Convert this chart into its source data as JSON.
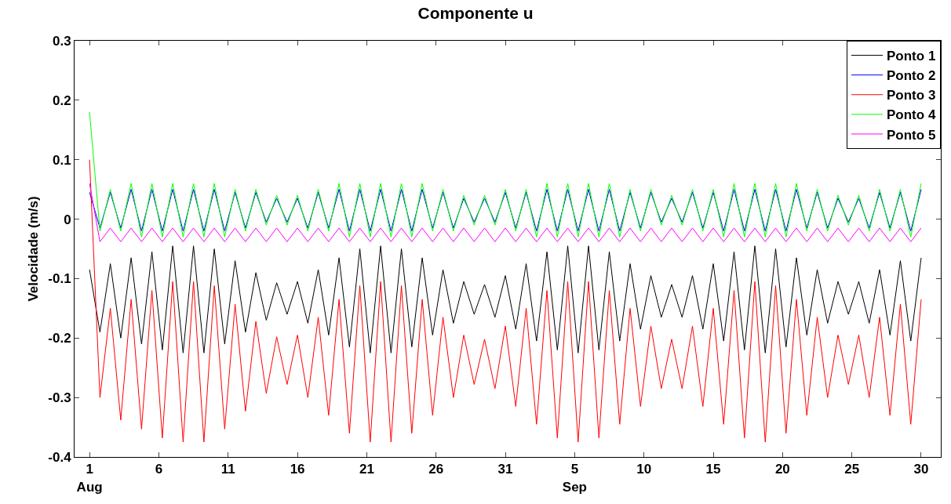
{
  "chart_data": {
    "type": "line",
    "title": "Componente u",
    "ylabel": "Velocidade (m/s)",
    "x": [
      "--08-01T00:00",
      "--08-01T18:00",
      "--08-02T12:00",
      "--08-03T06:00",
      "--08-04T00:00",
      "--08-04T18:00",
      "--08-05T12:00",
      "--08-06T06:00",
      "--08-07T00:00",
      "--08-07T18:00",
      "--08-08T12:00",
      "--08-09T06:00",
      "--08-10T00:00",
      "--08-10T18:00",
      "--08-11T12:00",
      "--08-12T06:00",
      "--08-13T00:00",
      "--08-13T18:00",
      "--08-14T12:00",
      "--08-15T06:00",
      "--08-16T00:00",
      "--08-16T18:00",
      "--08-17T12:00",
      "--08-18T06:00",
      "--08-19T00:00",
      "--08-19T18:00",
      "--08-20T12:00",
      "--08-21T06:00",
      "--08-22T00:00",
      "--08-22T18:00",
      "--08-23T12:00",
      "--08-24T06:00",
      "--08-25T00:00",
      "--08-25T18:00",
      "--08-26T12:00",
      "--08-27T06:00",
      "--08-28T00:00",
      "--08-28T18:00",
      "--08-29T12:00",
      "--08-30T06:00",
      "--08-31T00:00",
      "--08-31T18:00",
      "--09-01T12:00",
      "--09-02T06:00",
      "--09-03T00:00",
      "--09-03T18:00",
      "--09-04T12:00",
      "--09-05T06:00",
      "--09-06T00:00",
      "--09-06T18:00",
      "--09-07T12:00",
      "--09-08T06:00",
      "--09-09T00:00",
      "--09-09T18:00",
      "--09-10T12:00",
      "--09-11T06:00",
      "--09-12T00:00",
      "--09-12T18:00",
      "--09-13T12:00",
      "--09-14T06:00",
      "--09-15T00:00",
      "--09-15T18:00",
      "--09-16T12:00",
      "--09-17T06:00",
      "--09-18T00:00",
      "--09-18T18:00",
      "--09-19T12:00",
      "--09-20T06:00",
      "--09-21T00:00",
      "--09-21T18:00",
      "--09-22T12:00",
      "--09-23T06:00",
      "--09-24T00:00",
      "--09-24T18:00",
      "--09-25T12:00",
      "--09-26T06:00",
      "--09-27T00:00",
      "--09-27T18:00",
      "--09-28T12:00",
      "--09-29T06:00",
      "--09-30T00:00"
    ],
    "series": [
      {
        "name": "Ponto 1",
        "color": "#000000",
        "values": [
          -0.085,
          -0.19,
          -0.075,
          -0.2,
          -0.065,
          -0.21,
          -0.055,
          -0.22,
          -0.045,
          -0.225,
          -0.045,
          -0.225,
          -0.05,
          -0.21,
          -0.07,
          -0.19,
          -0.09,
          -0.17,
          -0.107,
          -0.16,
          -0.105,
          -0.175,
          -0.085,
          -0.195,
          -0.065,
          -0.215,
          -0.05,
          -0.225,
          -0.045,
          -0.225,
          -0.05,
          -0.215,
          -0.065,
          -0.195,
          -0.085,
          -0.175,
          -0.105,
          -0.16,
          -0.11,
          -0.165,
          -0.095,
          -0.185,
          -0.075,
          -0.205,
          -0.055,
          -0.22,
          -0.045,
          -0.225,
          -0.045,
          -0.22,
          -0.055,
          -0.205,
          -0.075,
          -0.185,
          -0.095,
          -0.165,
          -0.11,
          -0.165,
          -0.095,
          -0.185,
          -0.075,
          -0.205,
          -0.055,
          -0.22,
          -0.045,
          -0.225,
          -0.05,
          -0.215,
          -0.065,
          -0.195,
          -0.085,
          -0.175,
          -0.105,
          -0.16,
          -0.105,
          -0.175,
          -0.085,
          -0.195,
          -0.07,
          -0.205,
          -0.065
        ]
      },
      {
        "name": "Ponto 2",
        "color": "#0000ff",
        "values": [
          0.045,
          -0.015,
          0.045,
          -0.015,
          0.05,
          -0.02,
          0.05,
          -0.02,
          0.05,
          -0.02,
          0.05,
          -0.02,
          0.05,
          -0.02,
          0.045,
          -0.015,
          0.045,
          -0.005,
          0.035,
          -0.005,
          0.035,
          -0.015,
          0.045,
          -0.015,
          0.05,
          -0.02,
          0.05,
          -0.02,
          0.05,
          -0.02,
          0.05,
          -0.02,
          0.05,
          -0.015,
          0.045,
          -0.015,
          0.035,
          -0.005,
          0.035,
          -0.005,
          0.045,
          -0.015,
          0.045,
          -0.02,
          0.05,
          -0.02,
          0.05,
          -0.02,
          0.05,
          -0.02,
          0.05,
          -0.02,
          0.045,
          -0.015,
          0.045,
          -0.005,
          0.035,
          -0.005,
          0.045,
          -0.015,
          0.045,
          -0.02,
          0.05,
          -0.02,
          0.05,
          -0.02,
          0.05,
          -0.02,
          0.05,
          -0.015,
          0.045,
          -0.015,
          0.035,
          -0.005,
          0.035,
          -0.015,
          0.045,
          -0.015,
          0.045,
          -0.02,
          0.05
        ]
      },
      {
        "name": "Ponto 3",
        "color": "#ff0000",
        "values": [
          0.1,
          -0.3,
          -0.15,
          -0.338,
          -0.135,
          -0.353,
          -0.12,
          -0.368,
          -0.105,
          -0.375,
          -0.105,
          -0.375,
          -0.112,
          -0.353,
          -0.143,
          -0.323,
          -0.172,
          -0.293,
          -0.198,
          -0.278,
          -0.195,
          -0.3,
          -0.165,
          -0.33,
          -0.135,
          -0.36,
          -0.112,
          -0.375,
          -0.105,
          -0.375,
          -0.112,
          -0.36,
          -0.135,
          -0.33,
          -0.165,
          -0.3,
          -0.195,
          -0.278,
          -0.202,
          -0.285,
          -0.18,
          -0.315,
          -0.15,
          -0.345,
          -0.12,
          -0.368,
          -0.105,
          -0.375,
          -0.105,
          -0.368,
          -0.12,
          -0.345,
          -0.15,
          -0.315,
          -0.18,
          -0.285,
          -0.202,
          -0.285,
          -0.18,
          -0.315,
          -0.15,
          -0.345,
          -0.12,
          -0.368,
          -0.105,
          -0.375,
          -0.112,
          -0.36,
          -0.135,
          -0.33,
          -0.165,
          -0.3,
          -0.195,
          -0.278,
          -0.195,
          -0.3,
          -0.165,
          -0.33,
          -0.143,
          -0.345,
          -0.135
        ]
      },
      {
        "name": "Ponto 4",
        "color": "#00ff00",
        "values": [
          0.18,
          -0.02,
          0.05,
          -0.02,
          0.06,
          -0.03,
          0.06,
          -0.03,
          0.06,
          -0.03,
          0.06,
          -0.03,
          0.06,
          -0.03,
          0.05,
          -0.02,
          0.05,
          -0.01,
          0.04,
          -0.01,
          0.04,
          -0.02,
          0.05,
          -0.02,
          0.06,
          -0.03,
          0.06,
          -0.03,
          0.06,
          -0.03,
          0.06,
          -0.03,
          0.06,
          -0.02,
          0.05,
          -0.02,
          0.04,
          -0.01,
          0.04,
          -0.01,
          0.05,
          -0.02,
          0.05,
          -0.03,
          0.06,
          -0.03,
          0.06,
          -0.03,
          0.06,
          -0.03,
          0.06,
          -0.03,
          0.05,
          -0.02,
          0.05,
          -0.01,
          0.04,
          -0.01,
          0.05,
          -0.02,
          0.05,
          -0.03,
          0.06,
          -0.03,
          0.06,
          -0.03,
          0.06,
          -0.03,
          0.06,
          -0.02,
          0.05,
          -0.02,
          0.04,
          -0.01,
          0.04,
          -0.02,
          0.05,
          -0.02,
          0.05,
          -0.03,
          0.06
        ]
      },
      {
        "name": "Ponto 5",
        "color": "#ff00ff",
        "values": [
          0.06,
          -0.038,
          -0.015,
          -0.038,
          -0.015,
          -0.038,
          -0.015,
          -0.038,
          -0.015,
          -0.038,
          -0.015,
          -0.038,
          -0.015,
          -0.038,
          -0.015,
          -0.038,
          -0.015,
          -0.038,
          -0.015,
          -0.038,
          -0.015,
          -0.038,
          -0.015,
          -0.038,
          -0.015,
          -0.038,
          -0.015,
          -0.038,
          -0.015,
          -0.038,
          -0.015,
          -0.038,
          -0.015,
          -0.038,
          -0.015,
          -0.038,
          -0.015,
          -0.038,
          -0.015,
          -0.038,
          -0.015,
          -0.038,
          -0.015,
          -0.038,
          -0.015,
          -0.038,
          -0.015,
          -0.038,
          -0.015,
          -0.038,
          -0.015,
          -0.038,
          -0.015,
          -0.038,
          -0.015,
          -0.038,
          -0.015,
          -0.038,
          -0.015,
          -0.038,
          -0.015,
          -0.038,
          -0.015,
          -0.038,
          -0.015,
          -0.038,
          -0.015,
          -0.038,
          -0.015,
          -0.038,
          -0.015,
          -0.038,
          -0.015,
          -0.038,
          -0.015,
          -0.038,
          -0.015,
          -0.038,
          -0.015,
          -0.038,
          -0.015
        ]
      }
    ],
    "xlim": [
      "--07-30T22:00",
      "--10-01T10:00"
    ],
    "xticks": [
      {
        "value": "--08-01",
        "label": "1\nAug"
      },
      {
        "value": "--08-06",
        "label": "6"
      },
      {
        "value": "--08-11",
        "label": "11"
      },
      {
        "value": "--08-16",
        "label": "16"
      },
      {
        "value": "--08-21",
        "label": "21"
      },
      {
        "value": "--08-26",
        "label": "26"
      },
      {
        "value": "--08-31",
        "label": "31"
      },
      {
        "value": "--09-05",
        "label": "5\nSep"
      },
      {
        "value": "--09-10",
        "label": "10"
      },
      {
        "value": "--09-15",
        "label": "15"
      },
      {
        "value": "--09-20",
        "label": "20"
      },
      {
        "value": "--09-25",
        "label": "25"
      },
      {
        "value": "--09-30",
        "label": "30"
      }
    ],
    "ylim": [
      -0.4,
      0.3
    ],
    "yticks": [
      -0.4,
      -0.3,
      -0.2,
      -0.1,
      0,
      0.1,
      0.2,
      0.3
    ],
    "legend": "top right",
    "marker": "none",
    "line_style": "solid"
  }
}
